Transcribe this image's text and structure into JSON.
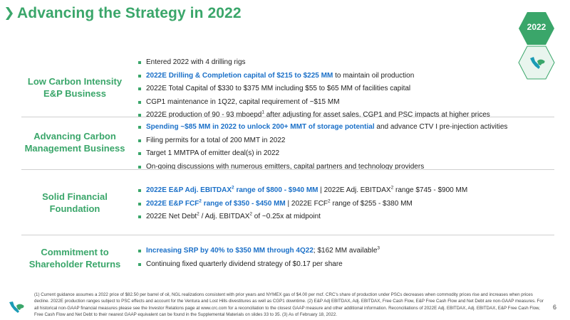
{
  "title": "Advancing the Strategy in 2022",
  "year_badge": "2022",
  "sections": [
    {
      "label_line1": "Low Carbon Intensity",
      "label_line2": "E&P Business",
      "bullets": [
        {
          "plain": "Entered 2022 with 4 drilling rigs"
        },
        {
          "hl": "2022E Drilling & Completion capital of $215 to $225 MM",
          "after": " to maintain oil production"
        },
        {
          "plain": "2022E Total Capital of $330 to $375 MM including $55 to $65 MM of facilities capital"
        },
        {
          "plain": "CGP1 maintenance in 1Q22, capital requirement of ~$15 MM"
        },
        {
          "before": "2022E production of 90 - 93 mboepd",
          "sup": "1",
          "after": " after adjusting for asset sales, CGP1 and PSC impacts at higher prices"
        }
      ]
    },
    {
      "label_line1": "Advancing Carbon",
      "label_line2": "Management Business",
      "bullets": [
        {
          "hl": "Spending ~$85 MM in 2022 to unlock 200+ MMT of storage potential",
          "after": " and advance CTV I pre-injection activities"
        },
        {
          "plain": "Filing permits for a total of 200 MMT in 2022"
        },
        {
          "plain": "Target 1 MMTPA of emitter deal(s) in 2022"
        },
        {
          "plain": "On-going discussions with numerous emitters, capital partners and technology providers"
        }
      ]
    },
    {
      "label_line1": "Solid Financial",
      "label_line2": "Foundation",
      "bullets": [
        {
          "hl_a": "2022E E&P Adj. EBITDAX",
          "hl_sup": "2",
          "hl_b": " range of $800 - $940 MM",
          "t1": " | 2022E Adj. EBITDAX",
          "t_sup": "2",
          "t2": " range $745 - $900 MM"
        },
        {
          "hl_a": "2022E E&P FCF",
          "hl_sup": "2",
          "hl_b": " range of $350 - $450 MM",
          "t1": " | 2022E FCF",
          "t_sup": "2",
          "t2": " range of $255 - $380 MM"
        },
        {
          "p1": "2022E Net Debt",
          "s1": "2",
          "p2": " / Adj. EBITDAX",
          "s2": "2",
          "p3": " of ~0.25x at midpoint"
        }
      ]
    },
    {
      "label_line1": "Commitment to",
      "label_line2": "Shareholder Returns",
      "bullets": [
        {
          "hl": "Increasing SRP by 40% to $350 MM through 4Q22",
          "after": "; $162 MM available",
          "sup": "3"
        },
        {
          "plain": "Continuing fixed quarterly dividend strategy of $0.17 per share"
        }
      ]
    }
  ],
  "footnote": "(1) Current guidance assumes a 2022 price of $82.50 per barrel of oil, NGL realizations consistent with prior years and NYMEX gas of $4.00 per mcf. CRC's share of production under PSCs decreases when commodity prices rise and increases when prices decline. 2022E production ranges subject to PSC effects and account for the Ventura and Lost Hills divestitures as well as CGP1 downtime. (2) E&P Adj EBITDAX, Adj. EBITDAX, Free Cash Flow, E&P Free Cash Flow and Net Debt are non-GAAP measures. For all historical non-GAAP financial measures please see the Investor Relations page at www.crc.com for a reconciliation to the closest GAAP measure and other additional information. Reconciliations of 2022E Adj. EBITDAX, Adj. EBITDAX, E&P Free Cash Flow, Free Cash Flow and Net Debt to their nearest GAAP equivalent can be found in the Supplemental Materials on slides 33 to 35. (3) As of February 18, 2022.",
  "page_number": "6",
  "colors": {
    "brand_green": "#3aa66a",
    "highlight_blue": "#1b70c8",
    "logo_teal": "#1a9bb5"
  }
}
